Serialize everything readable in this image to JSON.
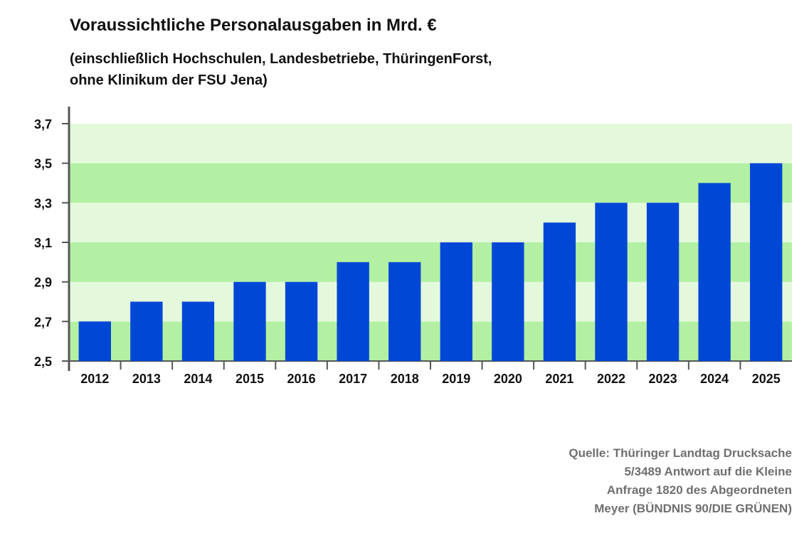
{
  "chart_data": {
    "type": "bar",
    "title": "Voraussichtliche Personalausgaben in Mrd. €",
    "subtitle": [
      "(einschließlich Hochschulen, Landesbetriebe, ThüringenForst,",
      "ohne Klinikum der FSU Jena)"
    ],
    "categories": [
      "2012",
      "2013",
      "2014",
      "2015",
      "2016",
      "2017",
      "2018",
      "2019",
      "2020",
      "2021",
      "2022",
      "2023",
      "2024",
      "2025"
    ],
    "values": [
      2.7,
      2.8,
      2.8,
      2.9,
      2.9,
      3.0,
      3.0,
      3.1,
      3.1,
      3.2,
      3.3,
      3.3,
      3.4,
      3.5
    ],
    "ylim": [
      2.5,
      3.7
    ],
    "yticks": [
      2.5,
      2.7,
      2.9,
      3.1,
      3.3,
      3.5,
      3.7
    ],
    "ytick_labels": [
      "2,5",
      "2,7",
      "2,9",
      "3,1",
      "3,3",
      "3,5",
      "3,7"
    ],
    "xlabel": "",
    "ylabel": "",
    "grid": "alternating horizontal bands",
    "legend": "none",
    "colors": {
      "bar": "#0047d6",
      "band_dark": "#b3f0a3",
      "band_light": "#e4f9dc",
      "axis": "#555555"
    }
  },
  "source": {
    "lines": [
      "Quelle: Thüringer Landtag Drucksache",
      "5/3489 Antwort auf die Kleine",
      "Anfrage 1820 des Abgeordneten",
      "Meyer (BÜNDNIS 90/DIE GRÜNEN)"
    ]
  }
}
